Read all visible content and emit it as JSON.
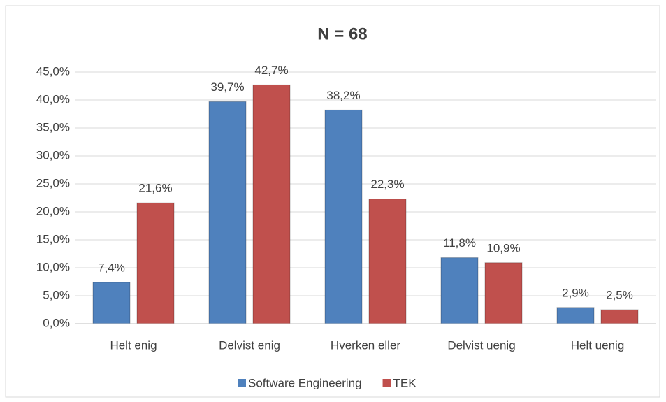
{
  "chart_data": {
    "type": "bar",
    "title": "N = 68",
    "categories": [
      "Helt enig",
      "Delvist enig",
      "Hverken eller",
      "Delvist uenig",
      "Helt uenig"
    ],
    "series": [
      {
        "name": "Software Engineering",
        "color": "#4f81bd",
        "values": [
          7.4,
          39.7,
          38.2,
          11.8,
          2.9
        ],
        "value_labels": [
          "7,4%",
          "39,7%",
          "38,2%",
          "11,8%",
          "2,9%"
        ]
      },
      {
        "name": "TEK",
        "color": "#c0504d",
        "values": [
          21.6,
          42.7,
          22.3,
          10.9,
          2.5
        ],
        "value_labels": [
          "21,6%",
          "42,7%",
          "22,3%",
          "10,9%",
          "2,5%"
        ]
      }
    ],
    "ylim": [
      0,
      45
    ],
    "yticks": [
      {
        "value": 0,
        "label": "0,0%"
      },
      {
        "value": 5,
        "label": "5,0%"
      },
      {
        "value": 10,
        "label": "10,0%"
      },
      {
        "value": 15,
        "label": "15,0%"
      },
      {
        "value": 20,
        "label": "20,0%"
      },
      {
        "value": 25,
        "label": "25,0%"
      },
      {
        "value": 30,
        "label": "30,0%"
      },
      {
        "value": 35,
        "label": "35,0%"
      },
      {
        "value": 40,
        "label": "40,0%"
      },
      {
        "value": 45,
        "label": "45,0%"
      }
    ],
    "grid": true,
    "legend": "bottom"
  }
}
